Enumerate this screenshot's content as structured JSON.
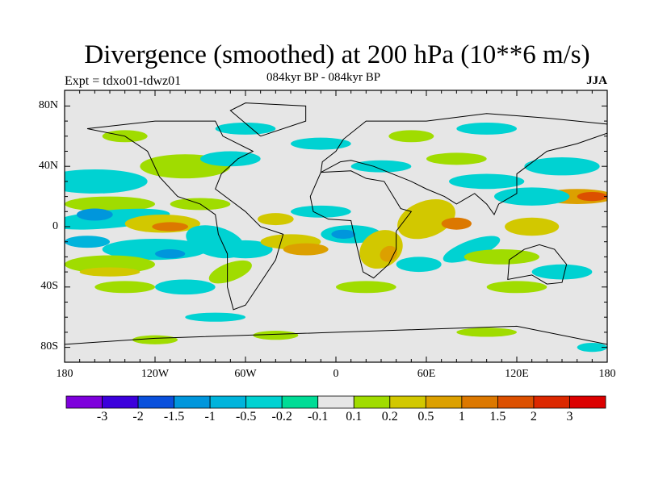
{
  "title": "Divergence (smoothed) at 200 hPa (10**6 m/s)",
  "subtitle_left": "Expt = tdxo01-tdwz01",
  "subtitle_center": "084kyr BP - 084kyr BP",
  "subtitle_right": "JJA",
  "x_ticks": [
    "180",
    "120W",
    "60W",
    "0",
    "60E",
    "120E",
    "180"
  ],
  "y_ticks": [
    "80N",
    "40N",
    "0",
    "40S",
    "80S"
  ],
  "colorbar": {
    "labels": [
      "-3",
      "-2",
      "-1.5",
      "-1",
      "-0.5",
      "-0.2",
      "-0.1",
      "0.1",
      "0.2",
      "0.5",
      "1",
      "1.5",
      "2",
      "3"
    ],
    "colors": [
      "#7e00dc",
      "#3c00dc",
      "#0a50dc",
      "#0096dc",
      "#00b4dc",
      "#00d2d2",
      "#00dc96",
      "#e6e6e6",
      "#a0dc00",
      "#d2c800",
      "#dca000",
      "#dc7800",
      "#dc5000",
      "#dc2800",
      "#dc0000"
    ]
  }
}
